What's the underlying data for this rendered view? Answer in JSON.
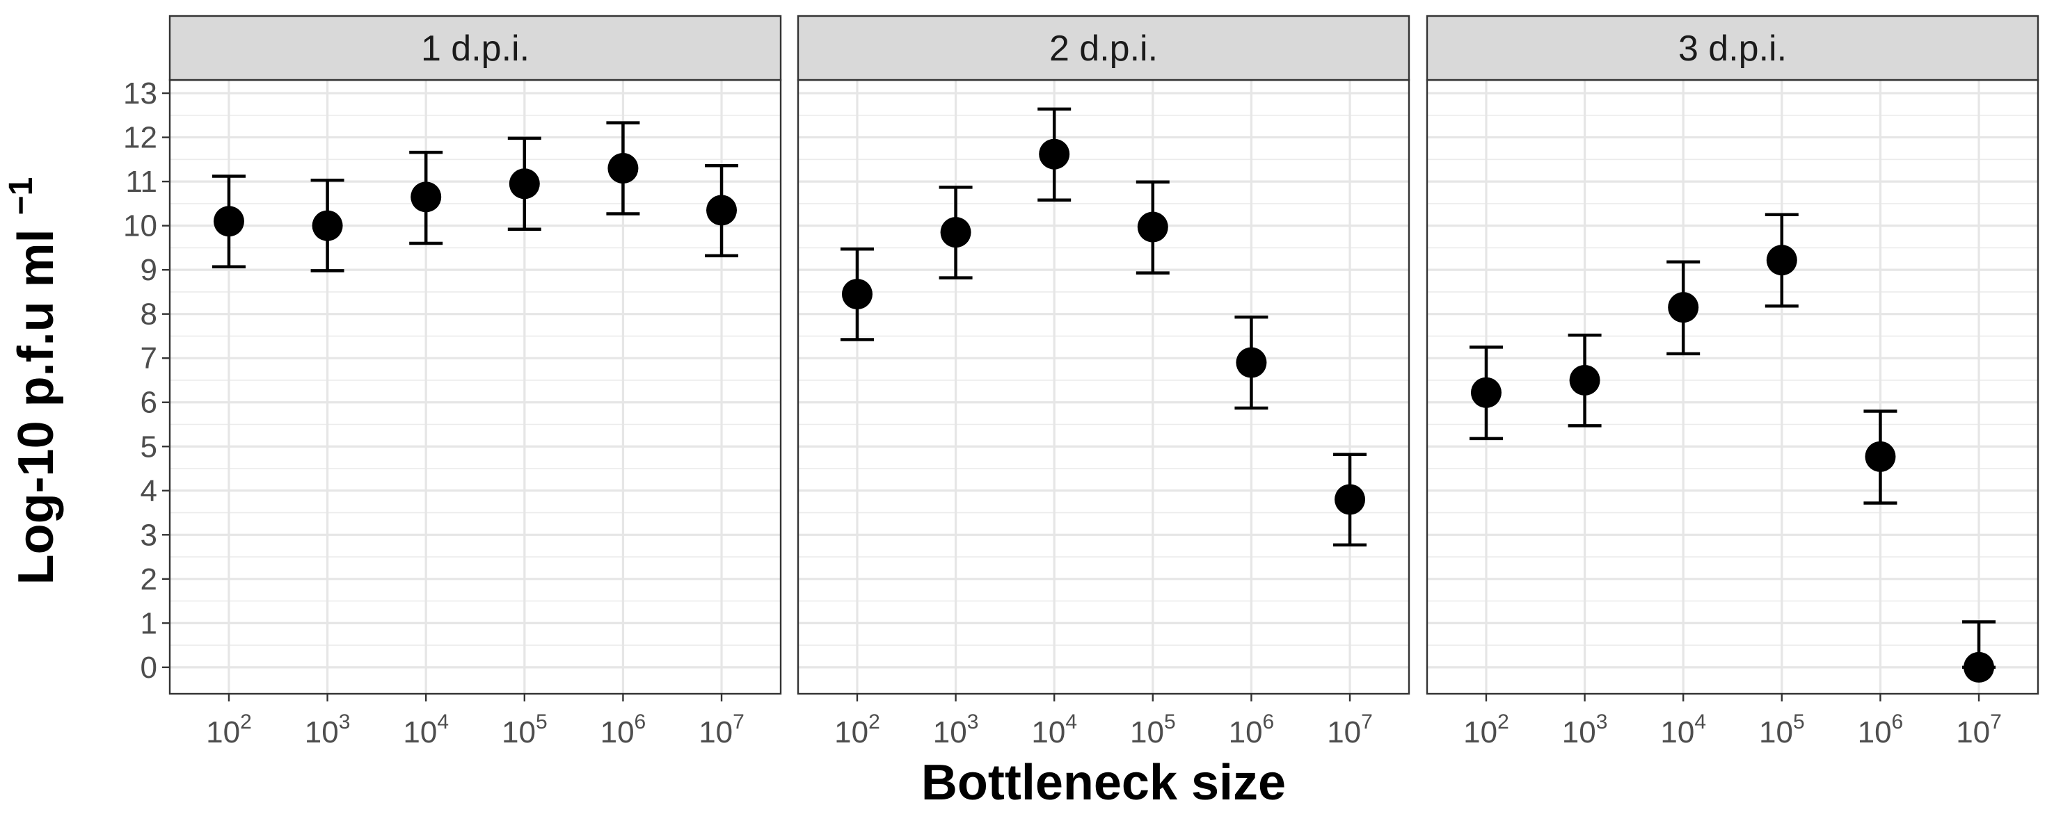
{
  "chart_data": {
    "type": "scatter",
    "ylabel": "Log-10 p.f.u ml",
    "ylabel_superscript": "−1",
    "xlabel": "Bottleneck size",
    "ylim": [
      -0.6,
      13.3
    ],
    "yticks": [
      0,
      1,
      2,
      3,
      4,
      5,
      6,
      7,
      8,
      9,
      10,
      11,
      12,
      13
    ],
    "categories": [
      {
        "base": "10",
        "exp": "2"
      },
      {
        "base": "10",
        "exp": "3"
      },
      {
        "base": "10",
        "exp": "4"
      },
      {
        "base": "10",
        "exp": "5"
      },
      {
        "base": "10",
        "exp": "6"
      },
      {
        "base": "10",
        "exp": "7"
      }
    ],
    "grid": true,
    "legend": "none",
    "colors": {
      "point": "#000000",
      "strip": "#d9d9d9",
      "grid": "#ebebeb",
      "border": "#333333"
    },
    "panels": [
      {
        "strip": "1 d.p.i.",
        "values": [
          10.1,
          10.0,
          10.65,
          10.95,
          11.3,
          10.35
        ],
        "lower": [
          9.07,
          8.98,
          9.6,
          9.92,
          10.27,
          9.32
        ],
        "upper": [
          11.12,
          11.03,
          11.66,
          11.98,
          12.33,
          11.36
        ]
      },
      {
        "strip": "2 d.p.i.",
        "values": [
          8.45,
          9.85,
          11.62,
          9.97,
          6.9,
          3.8
        ],
        "lower": [
          7.42,
          8.82,
          10.58,
          8.93,
          5.87,
          2.77
        ],
        "upper": [
          9.47,
          10.87,
          12.64,
          10.99,
          7.93,
          4.82
        ]
      },
      {
        "strip": "3 d.p.i.",
        "values": [
          6.22,
          6.5,
          8.15,
          9.22,
          4.77,
          0.0
        ],
        "lower": [
          5.18,
          5.47,
          7.1,
          8.18,
          3.72,
          0.0
        ],
        "upper": [
          7.25,
          7.52,
          9.18,
          10.25,
          5.8,
          1.03
        ]
      }
    ]
  }
}
